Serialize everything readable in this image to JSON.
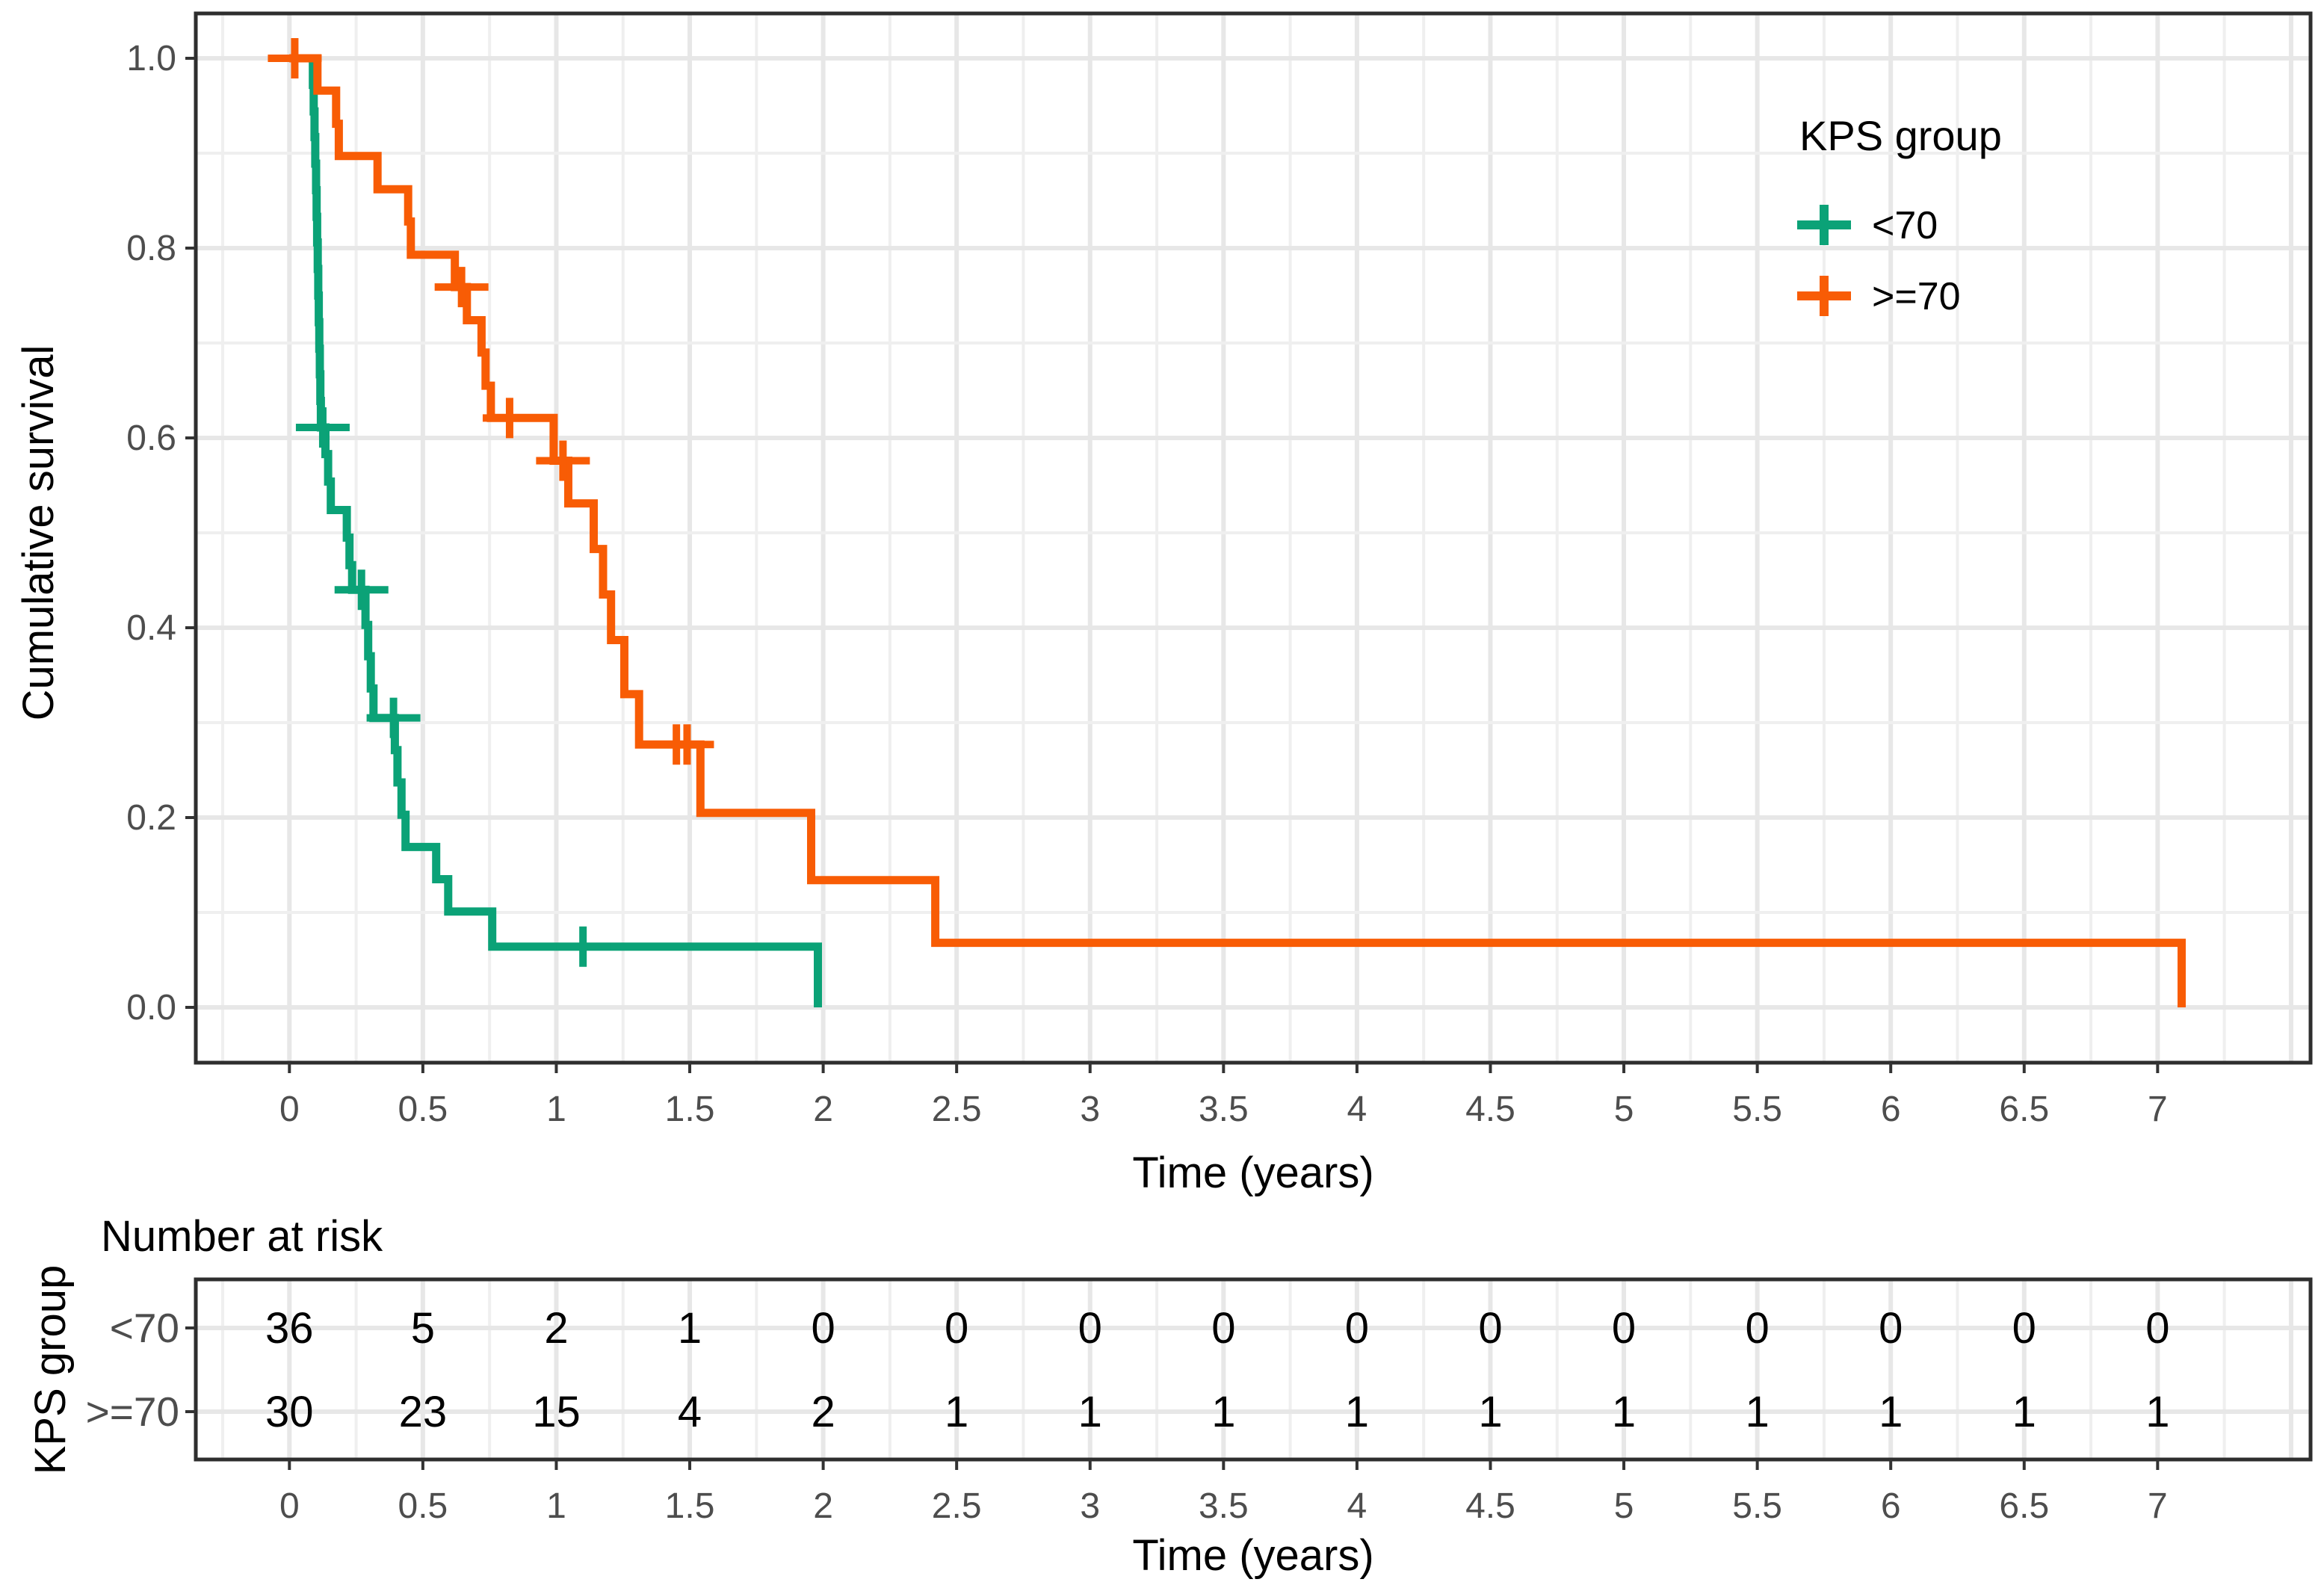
{
  "colors": {
    "group1": "#0ba277",
    "group2": "#f85c05",
    "grid_major": "#e7e7e7",
    "grid_minor": "#efefef",
    "panel_border": "#2e2e2e",
    "tick": "#333333",
    "tick_label": "#4d4d4d",
    "text": "#000000",
    "background": "#ffffff"
  },
  "legend": {
    "title": "KPS group",
    "items": [
      {
        "label": "<70",
        "color_key": "group1"
      },
      {
        "label": ">=70",
        "color_key": "group2"
      }
    ]
  },
  "main_plot": {
    "ylabel": "Cumulative survival",
    "xlabel": "Time (years)",
    "x_ticks": [
      0,
      0.5,
      1,
      1.5,
      2,
      2.5,
      3,
      3.5,
      4,
      4.5,
      5,
      5.5,
      6,
      6.5,
      7
    ],
    "y_ticks": [
      0.0,
      0.2,
      0.4,
      0.6,
      0.8,
      1.0
    ]
  },
  "chart_data": {
    "type": "line",
    "subtype": "kaplan-meier-step",
    "title": "",
    "xlabel": "Time (years)",
    "ylabel": "Cumulative survival",
    "xlim": [
      -0.35,
      7.57
    ],
    "ylim": [
      -0.06,
      1.05
    ],
    "grid": "on",
    "legend_position": "inside-top-right",
    "series": [
      {
        "name": "<70",
        "color_key": "group1",
        "start": [
          0,
          1.0
        ],
        "steps": [
          [
            0.088,
            0.972
          ],
          [
            0.091,
            0.944
          ],
          [
            0.094,
            0.917
          ],
          [
            0.097,
            0.889
          ],
          [
            0.1,
            0.861
          ],
          [
            0.102,
            0.833
          ],
          [
            0.104,
            0.806
          ],
          [
            0.106,
            0.778
          ],
          [
            0.108,
            0.75
          ],
          [
            0.11,
            0.722
          ],
          [
            0.112,
            0.694
          ],
          [
            0.114,
            0.667
          ],
          [
            0.116,
            0.639
          ],
          [
            0.118,
            0.611
          ],
          [
            0.135,
            0.583
          ],
          [
            0.145,
            0.554
          ],
          [
            0.155,
            0.524
          ],
          [
            0.215,
            0.495
          ],
          [
            0.225,
            0.466
          ],
          [
            0.235,
            0.44
          ],
          [
            0.285,
            0.403
          ],
          [
            0.295,
            0.37
          ],
          [
            0.305,
            0.336
          ],
          [
            0.315,
            0.305
          ],
          [
            0.395,
            0.271
          ],
          [
            0.405,
            0.237
          ],
          [
            0.42,
            0.203
          ],
          [
            0.435,
            0.169
          ],
          [
            0.55,
            0.135
          ],
          [
            0.595,
            0.101
          ],
          [
            0.76,
            0.064
          ],
          [
            1.98,
            0.0
          ]
        ],
        "censors": [
          [
            0.125,
            0.611
          ],
          [
            0.27,
            0.44
          ],
          [
            0.39,
            0.305
          ],
          [
            1.1,
            0.064
          ]
        ]
      },
      {
        "name": ">=70",
        "color_key": "group2",
        "start": [
          0,
          1.0
        ],
        "steps": [
          [
            0.105,
            0.966
          ],
          [
            0.175,
            0.931
          ],
          [
            0.185,
            0.897
          ],
          [
            0.33,
            0.862
          ],
          [
            0.445,
            0.828
          ],
          [
            0.455,
            0.793
          ],
          [
            0.62,
            0.759
          ],
          [
            0.665,
            0.724
          ],
          [
            0.72,
            0.69
          ],
          [
            0.735,
            0.655
          ],
          [
            0.755,
            0.621
          ],
          [
            0.99,
            0.576
          ],
          [
            1.045,
            0.531
          ],
          [
            1.14,
            0.483
          ],
          [
            1.175,
            0.435
          ],
          [
            1.205,
            0.387
          ],
          [
            1.255,
            0.33
          ],
          [
            1.31,
            0.277
          ],
          [
            1.54,
            0.205
          ],
          [
            1.955,
            0.134
          ],
          [
            2.42,
            0.068
          ],
          [
            7.09,
            0.0
          ]
        ],
        "censors": [
          [
            0.02,
            1.0
          ],
          [
            0.645,
            0.759
          ],
          [
            0.825,
            0.621
          ],
          [
            1.025,
            0.576
          ],
          [
            1.45,
            0.277
          ],
          [
            1.49,
            0.277
          ]
        ]
      }
    ]
  },
  "risk_table": {
    "title": "Number at risk",
    "ylabel": "KPS group",
    "xlabel": "Time (years)",
    "times": [
      0,
      0.5,
      1,
      1.5,
      2,
      2.5,
      3,
      3.5,
      4,
      4.5,
      5,
      5.5,
      6,
      6.5,
      7
    ],
    "rows": [
      {
        "label": "<70",
        "color_key": "group1",
        "counts": [
          36,
          5,
          2,
          1,
          0,
          0,
          0,
          0,
          0,
          0,
          0,
          0,
          0,
          0,
          0
        ]
      },
      {
        "label": ">=70",
        "color_key": "group2",
        "counts": [
          30,
          23,
          15,
          4,
          2,
          1,
          1,
          1,
          1,
          1,
          1,
          1,
          1,
          1,
          1
        ]
      }
    ]
  }
}
